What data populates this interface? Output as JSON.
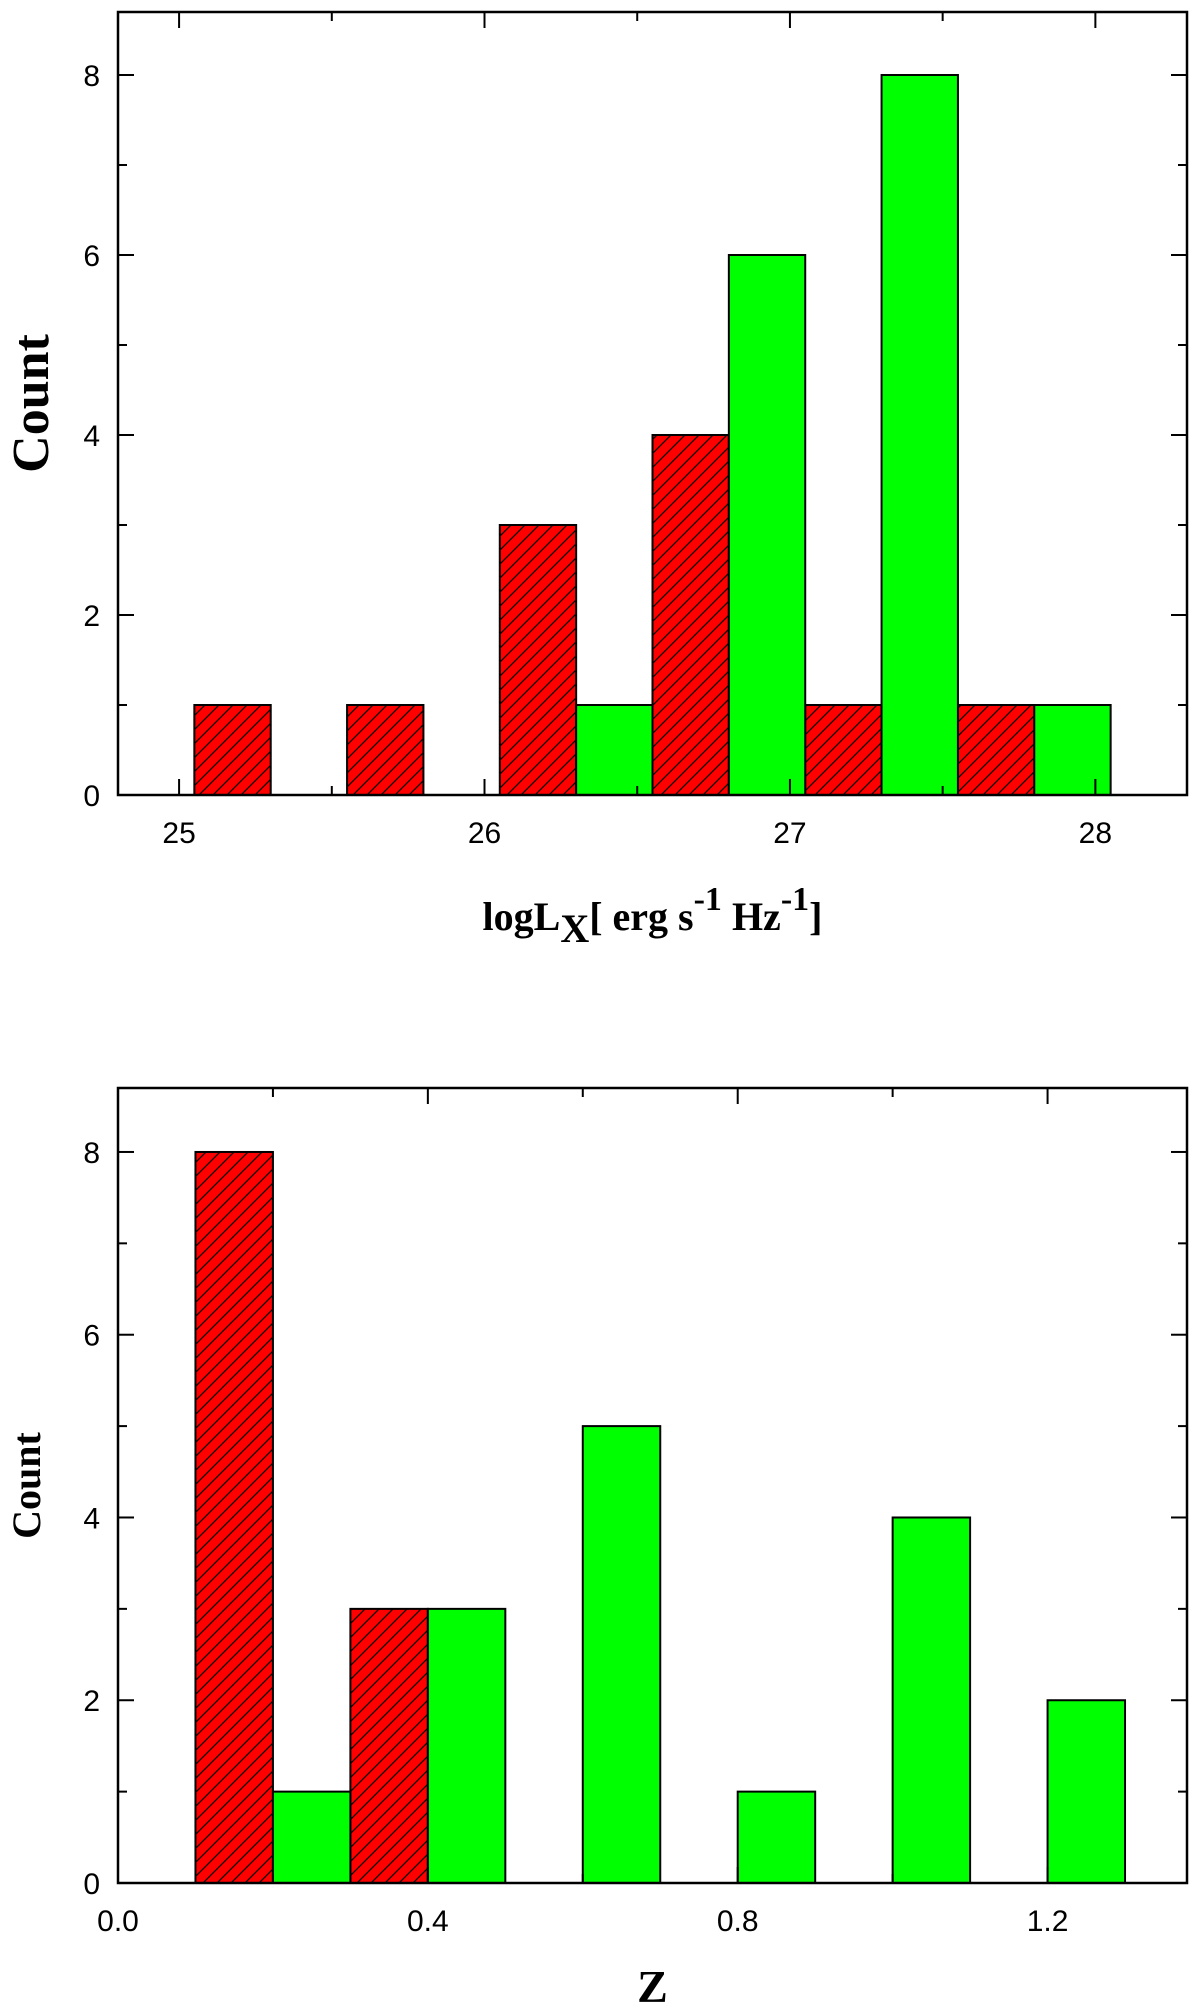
{
  "chart_data": [
    {
      "type": "bar",
      "subtype": "histogram",
      "xlabel": "logL_X[ erg s^-1 Hz^-1]",
      "xlabel_parts": {
        "main": "logL",
        "sub": "X",
        "mid": "[ erg s",
        "sup1": "-1",
        "unit": " Hz",
        "sup2": "-1",
        "end": "]"
      },
      "ylabel": "Count",
      "xlim": [
        24.8,
        28.3
      ],
      "ylim": [
        0,
        8.7
      ],
      "xticks": [
        25,
        26,
        27,
        28
      ],
      "xtick_labels": [
        "25",
        "26",
        "27",
        "28"
      ],
      "yticks": [
        0,
        2,
        4,
        6,
        8
      ],
      "ytick_labels": [
        "0",
        "2",
        "4",
        "6",
        "8"
      ],
      "bin_width": 0.25,
      "series": [
        {
          "name": "red-hatched",
          "color": "#ff0000",
          "hatched": true,
          "bins": [
            {
              "x0": 25.05,
              "x1": 25.3,
              "count": 1
            },
            {
              "x0": 25.55,
              "x1": 25.8,
              "count": 1
            },
            {
              "x0": 26.05,
              "x1": 26.3,
              "count": 3
            },
            {
              "x0": 26.55,
              "x1": 26.8,
              "count": 4
            },
            {
              "x0": 27.05,
              "x1": 27.3,
              "count": 1
            },
            {
              "x0": 27.55,
              "x1": 27.8,
              "count": 1
            }
          ]
        },
        {
          "name": "green",
          "color": "#00ff00",
          "hatched": false,
          "bins": [
            {
              "x0": 26.3,
              "x1": 26.55,
              "count": 1
            },
            {
              "x0": 26.8,
              "x1": 27.05,
              "count": 6
            },
            {
              "x0": 27.3,
              "x1": 27.55,
              "count": 8
            },
            {
              "x0": 27.8,
              "x1": 28.05,
              "count": 1
            }
          ]
        }
      ]
    },
    {
      "type": "bar",
      "subtype": "histogram",
      "xlabel": "Z",
      "ylabel": "Count",
      "xlim": [
        0.0,
        1.38
      ],
      "ylim": [
        0,
        8.7
      ],
      "xticks": [
        0.0,
        0.4,
        0.8,
        1.2
      ],
      "xtick_labels": [
        "0.0",
        "0.4",
        "0.8",
        "1.2"
      ],
      "yticks": [
        0,
        2,
        4,
        6,
        8
      ],
      "ytick_labels": [
        "0",
        "2",
        "4",
        "6",
        "8"
      ],
      "bin_width": 0.1,
      "series": [
        {
          "name": "red-hatched",
          "color": "#ff0000",
          "hatched": true,
          "bins": [
            {
              "x0": 0.1,
              "x1": 0.2,
              "count": 8
            },
            {
              "x0": 0.3,
              "x1": 0.4,
              "count": 3
            }
          ]
        },
        {
          "name": "green",
          "color": "#00ff00",
          "hatched": false,
          "bins": [
            {
              "x0": 0.2,
              "x1": 0.3,
              "count": 1
            },
            {
              "x0": 0.4,
              "x1": 0.5,
              "count": 3
            },
            {
              "x0": 0.6,
              "x1": 0.7,
              "count": 5
            },
            {
              "x0": 0.8,
              "x1": 0.9,
              "count": 1
            },
            {
              "x0": 1.0,
              "x1": 1.1,
              "count": 4
            },
            {
              "x0": 1.2,
              "x1": 1.3,
              "count": 2
            }
          ]
        }
      ]
    }
  ]
}
